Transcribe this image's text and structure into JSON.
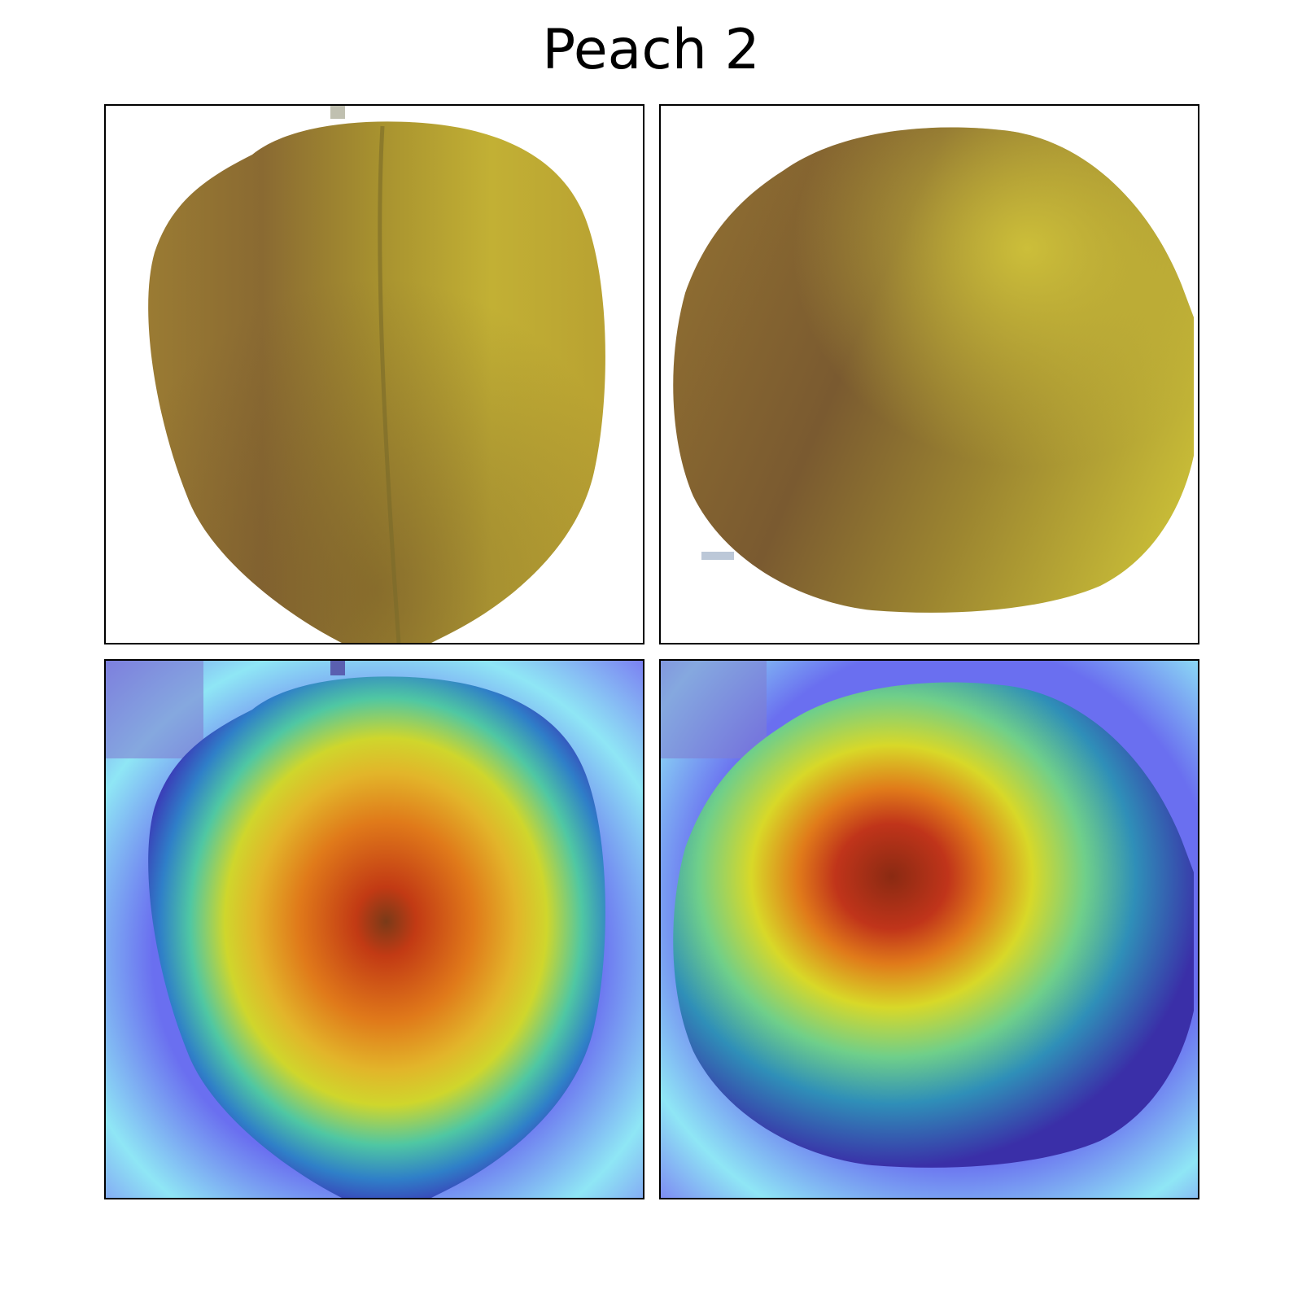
{
  "figure": {
    "title": "Peach 2"
  },
  "panels": [
    {
      "id": "original-front",
      "content": "peach-photo"
    },
    {
      "id": "original-side",
      "content": "peach-photo"
    },
    {
      "id": "heatmap-front",
      "content": "heatmap-overlay"
    },
    {
      "id": "heatmap-side",
      "content": "heatmap-overlay"
    }
  ],
  "colors": {
    "peach_light": "#c4b535",
    "peach_dark": "#7a5a30",
    "heat_hot": "#8b2a12",
    "heat_warm": "#e07a1a",
    "heat_mid": "#d8d828",
    "heat_cool": "#3fbfb0",
    "heat_cold": "#7b7bf5"
  }
}
